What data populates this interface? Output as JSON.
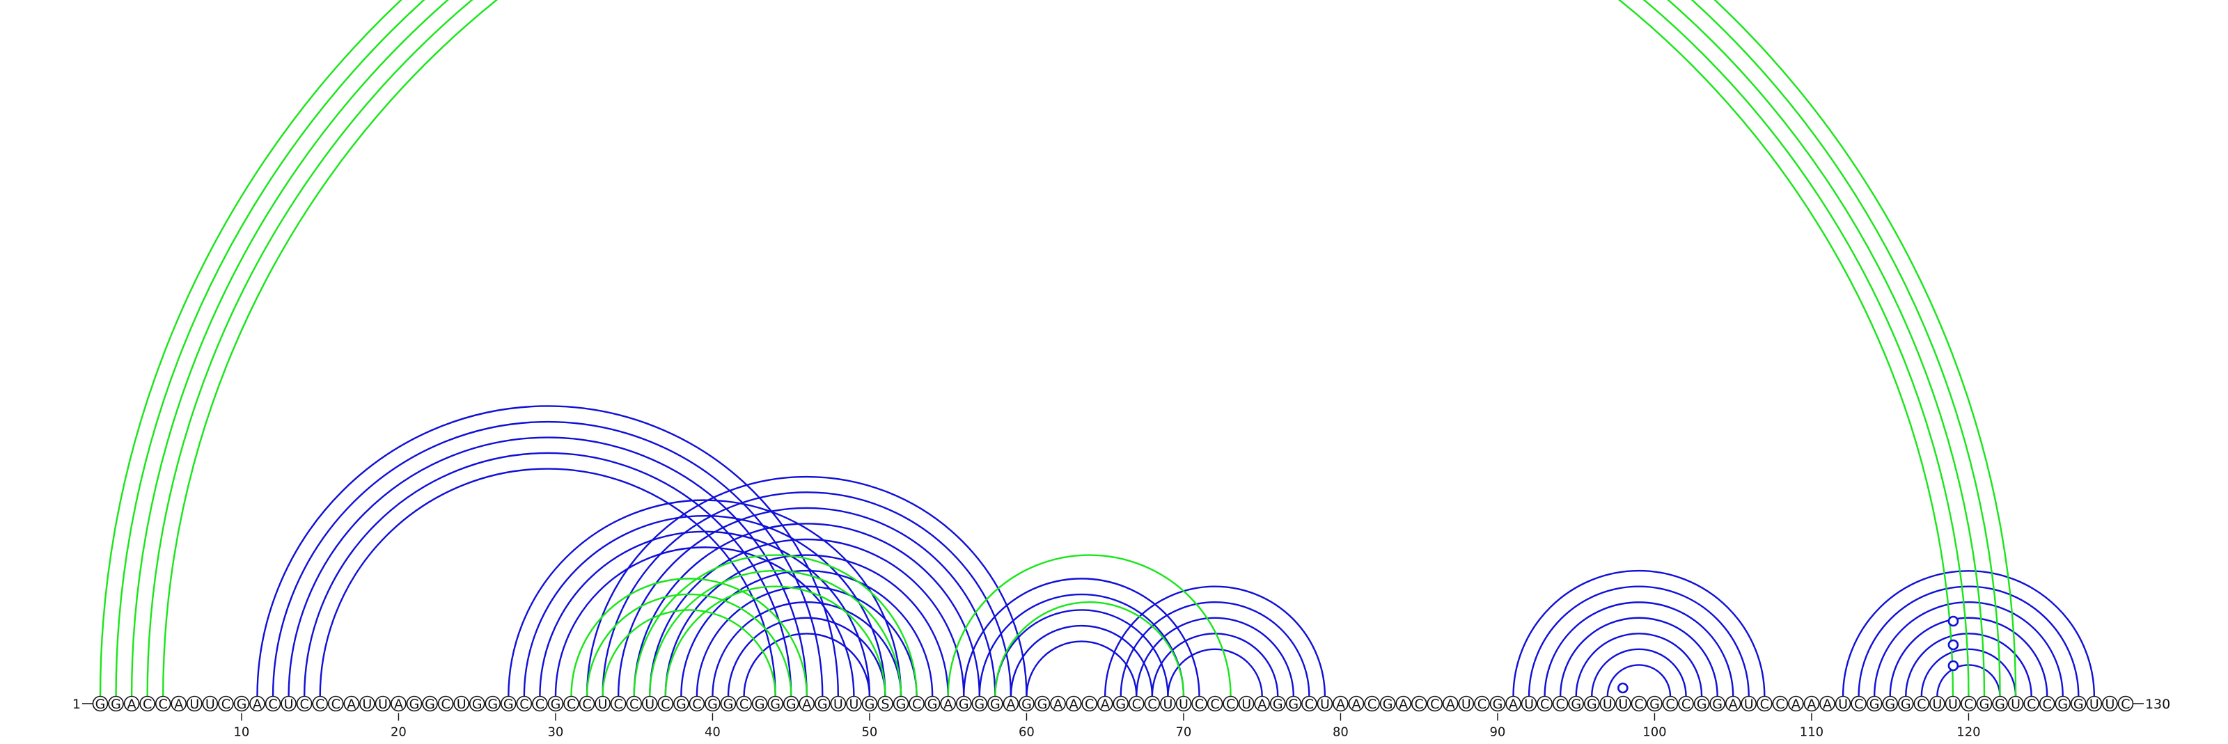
{
  "chart_data": {
    "type": "arc-diagram",
    "sequence": "GGACCAUUCGACUCCCAUUAGGCUGGGCCGCCUCCUCGCGGCGGGAGUUGSGCGAGGGAGGAACAGCCUUCCCUAGGCUAACGACCAUCGAUCCGGUUCGCCGGAUCCAAAUCGGGCUUCGGUCCGGUUC",
    "start_label": "1",
    "end_label": "130",
    "ticks": [
      10,
      20,
      30,
      40,
      50,
      60,
      70,
      80,
      90,
      100,
      110,
      120
    ],
    "series_colors": {
      "blue": "#1010d8",
      "green": "#19e619"
    },
    "arcs_blue": [
      [
        11,
        48
      ],
      [
        12,
        47
      ],
      [
        13,
        46
      ],
      [
        14,
        45
      ],
      [
        15,
        44
      ],
      [
        27,
        52
      ],
      [
        28,
        51
      ],
      [
        29,
        50
      ],
      [
        30,
        49
      ],
      [
        32,
        60
      ],
      [
        33,
        59
      ],
      [
        34,
        58
      ],
      [
        35,
        57
      ],
      [
        36,
        56
      ],
      [
        37,
        55
      ],
      [
        38,
        54
      ],
      [
        39,
        53
      ],
      [
        40,
        52
      ],
      [
        41,
        51
      ],
      [
        42,
        50
      ],
      [
        56,
        71
      ],
      [
        57,
        70
      ],
      [
        58,
        69
      ],
      [
        59,
        68
      ],
      [
        60,
        67
      ],
      [
        65,
        79
      ],
      [
        66,
        78
      ],
      [
        67,
        77
      ],
      [
        68,
        76
      ],
      [
        69,
        75
      ],
      [
        91,
        107
      ],
      [
        92,
        106
      ],
      [
        93,
        105
      ],
      [
        94,
        104
      ],
      [
        95,
        103
      ],
      [
        96,
        102
      ],
      [
        97,
        101
      ],
      [
        112,
        128
      ],
      [
        113,
        127
      ],
      [
        114,
        126
      ],
      [
        115,
        125
      ],
      [
        116,
        124
      ],
      [
        117,
        123
      ],
      [
        118,
        122
      ]
    ],
    "arcs_green": [
      [
        1,
        123
      ],
      [
        2,
        122
      ],
      [
        3,
        121
      ],
      [
        4,
        120
      ],
      [
        5,
        119
      ],
      [
        31,
        46
      ],
      [
        32,
        45
      ],
      [
        33,
        44
      ],
      [
        35,
        53
      ],
      [
        36,
        52
      ],
      [
        37,
        51
      ],
      [
        55,
        73
      ],
      [
        58,
        70
      ]
    ],
    "markers_blue": [
      98,
      119,
      119,
      119
    ]
  }
}
